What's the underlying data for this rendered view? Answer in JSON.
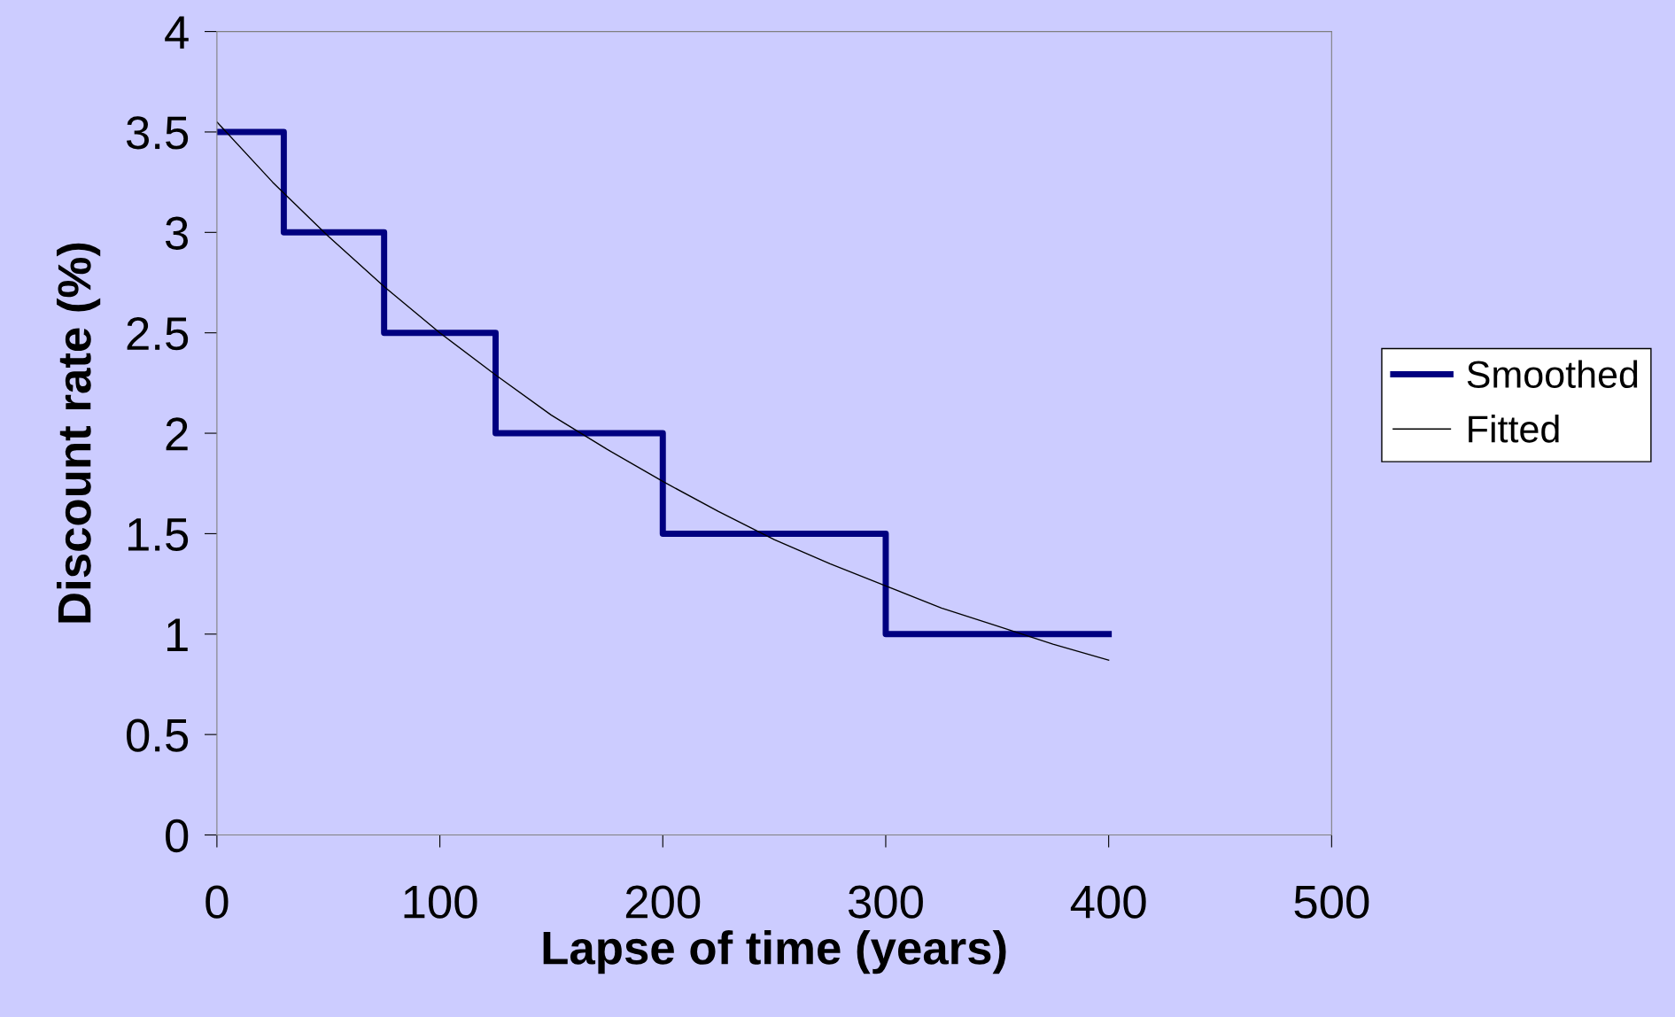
{
  "chart_data": {
    "type": "step",
    "xlabel": "Lapse of time (years)",
    "ylabel": "Discount rate (%)",
    "xlim": [
      0,
      500
    ],
    "xticks": [
      0,
      100,
      200,
      300,
      400,
      500
    ],
    "ylim": [
      0,
      4
    ],
    "yticks": [
      0,
      0.5,
      1,
      1.5,
      2,
      2.5,
      3,
      3.5,
      4
    ],
    "grid": false,
    "legend": "right",
    "series": [
      {
        "name": "Smoothed",
        "color": "#000080",
        "x": [
          0,
          30,
          75,
          125,
          200,
          300,
          400
        ],
        "values": [
          3.5,
          3,
          2.5,
          2,
          1.5,
          1,
          1
        ]
      },
      {
        "name": "Fitted",
        "type": "line",
        "color": "#000000",
        "x": [
          0,
          25,
          50,
          75,
          100,
          125,
          150,
          175,
          200,
          225,
          250,
          275,
          300,
          325,
          350,
          375,
          400
        ],
        "values": [
          3.55,
          3.25,
          2.98,
          2.73,
          2.5,
          2.29,
          2.09,
          1.92,
          1.76,
          1.61,
          1.47,
          1.35,
          1.24,
          1.13,
          1.04,
          0.95,
          0.87
        ]
      }
    ]
  }
}
